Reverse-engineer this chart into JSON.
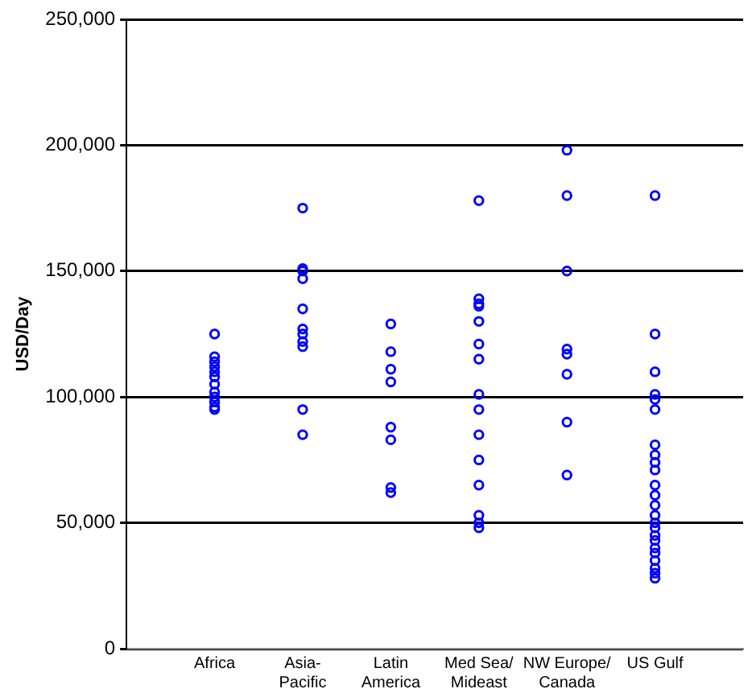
{
  "chart_data": {
    "type": "scatter",
    "ylabel": "USD/Day",
    "categories": [
      "Africa",
      "Asia-Pacific",
      "Latin America",
      "Med Sea/Mideast",
      "NW Europe/Canada",
      "US Gulf"
    ],
    "series": [
      {
        "color": "#0000ff",
        "x": [
          "Africa",
          "Africa",
          "Africa",
          "Africa",
          "Africa",
          "Africa",
          "Africa",
          "Africa",
          "Africa",
          "Africa",
          "Africa",
          "Africa",
          "Asia-Pacific",
          "Asia-Pacific",
          "Asia-Pacific",
          "Asia-Pacific",
          "Asia-Pacific",
          "Asia-Pacific",
          "Asia-Pacific",
          "Asia-Pacific",
          "Asia-Pacific",
          "Asia-Pacific",
          "Asia-Pacific",
          "Latin America",
          "Latin America",
          "Latin America",
          "Latin America",
          "Latin America",
          "Latin America",
          "Latin America",
          "Latin America",
          "Med Sea/Mideast",
          "Med Sea/Mideast",
          "Med Sea/Mideast",
          "Med Sea/Mideast",
          "Med Sea/Mideast",
          "Med Sea/Mideast",
          "Med Sea/Mideast",
          "Med Sea/Mideast",
          "Med Sea/Mideast",
          "Med Sea/Mideast",
          "Med Sea/Mideast",
          "Med Sea/Mideast",
          "Med Sea/Mideast",
          "Med Sea/Mideast",
          "Med Sea/Mideast",
          "NW Europe/Canada",
          "NW Europe/Canada",
          "NW Europe/Canada",
          "NW Europe/Canada",
          "NW Europe/Canada",
          "NW Europe/Canada",
          "NW Europe/Canada",
          "NW Europe/Canada",
          "US Gulf",
          "US Gulf",
          "US Gulf",
          "US Gulf",
          "US Gulf",
          "US Gulf",
          "US Gulf",
          "US Gulf",
          "US Gulf",
          "US Gulf",
          "US Gulf",
          "US Gulf",
          "US Gulf",
          "US Gulf",
          "US Gulf",
          "US Gulf",
          "US Gulf",
          "US Gulf",
          "US Gulf",
          "US Gulf",
          "US Gulf",
          "US Gulf",
          "US Gulf",
          "US Gulf"
        ],
        "values": [
          125000,
          116000,
          114000,
          112000,
          110000,
          108000,
          105000,
          102000,
          100000,
          98000,
          96000,
          95000,
          175000,
          151000,
          150000,
          147000,
          135000,
          127000,
          125000,
          122000,
          120000,
          95000,
          85000,
          129000,
          118000,
          111000,
          106000,
          88000,
          83000,
          64000,
          62000,
          178000,
          139000,
          137000,
          136000,
          130000,
          121000,
          115000,
          101000,
          95000,
          85000,
          75000,
          65000,
          53000,
          50000,
          48000,
          198000,
          180000,
          150000,
          119000,
          117000,
          109000,
          90000,
          69000,
          180000,
          125000,
          110000,
          101000,
          99000,
          95000,
          81000,
          77000,
          74000,
          71000,
          65000,
          61000,
          57000,
          53000,
          50000,
          48000,
          45000,
          43000,
          40000,
          38000,
          35000,
          32000,
          30000,
          28000
        ]
      }
    ],
    "ylim": [
      0,
      250000
    ],
    "yticks": [
      {
        "value": 0,
        "label": "0"
      },
      {
        "value": 50000,
        "label": "50,000"
      },
      {
        "value": 100000,
        "label": "100,000"
      },
      {
        "value": 150000,
        "label": "150,000"
      },
      {
        "value": 200000,
        "label": "200,000"
      },
      {
        "value": 250000,
        "label": "250,000"
      }
    ],
    "grid": "y",
    "marker": "circle"
  }
}
